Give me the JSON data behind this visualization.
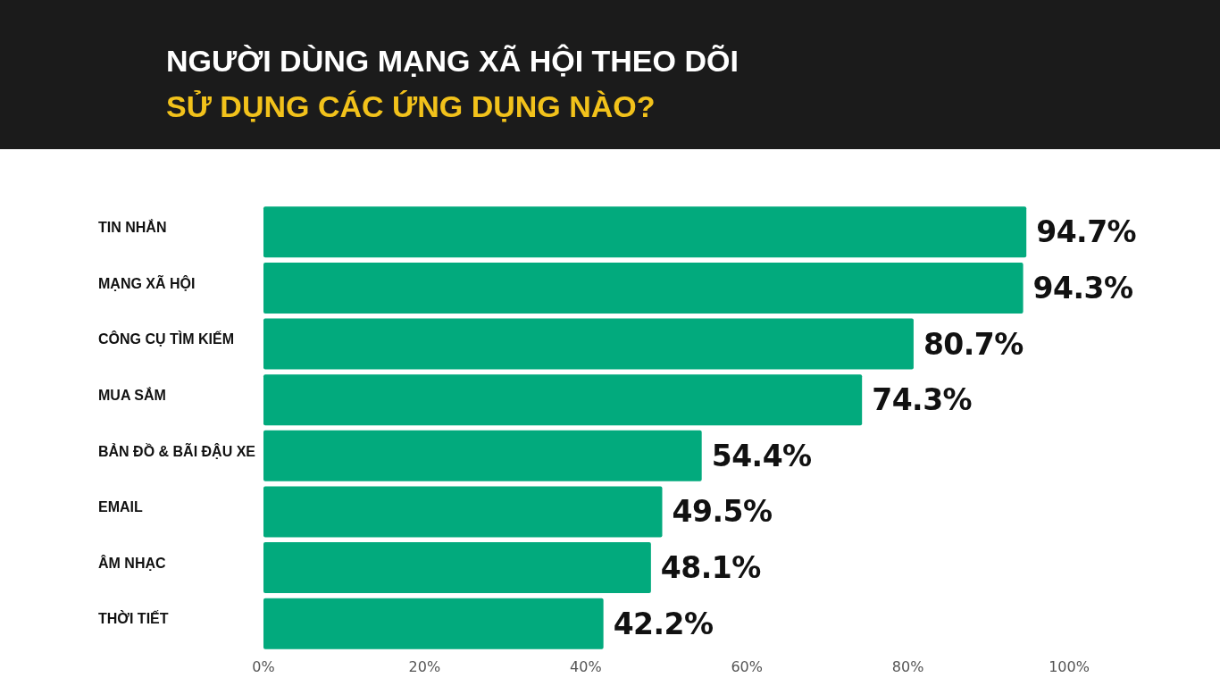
{
  "chart_data": {
    "type": "bar",
    "orientation": "horizontal",
    "title": "NGƯỜI DÙNG MẠNG XÃ HỘI THEO DÕI",
    "subtitle": "SỬ DỤNG CÁC ỨNG DỤNG NÀO?",
    "categories": [
      "TIN NHẮN",
      "MẠNG XÃ HỘI",
      "CÔNG CỤ TÌM KIẾM",
      "MUA SẮM",
      "BẢN ĐỒ & BÃI ĐẬU XE",
      "EMAIL",
      "ÂM NHẠC",
      "THỜI TIẾT"
    ],
    "values": [
      94.7,
      94.3,
      80.7,
      74.3,
      54.4,
      49.5,
      48.1,
      42.2
    ],
    "color": "#02aa7d",
    "value_labels": [
      "94.7%",
      "94.3%",
      "80.7%",
      "74.3%",
      "54.4%",
      "49.5%",
      "48.1%",
      "42.2%"
    ],
    "xlim": [
      0,
      100
    ],
    "xticks": [
      {
        "value": 0,
        "label": "0%"
      },
      {
        "value": 20,
        "label": "20%"
      },
      {
        "value": 40,
        "label": "40%"
      },
      {
        "value": 60,
        "label": "60%"
      },
      {
        "value": 80,
        "label": "80%"
      },
      {
        "value": 100,
        "label": "100%"
      }
    ]
  }
}
